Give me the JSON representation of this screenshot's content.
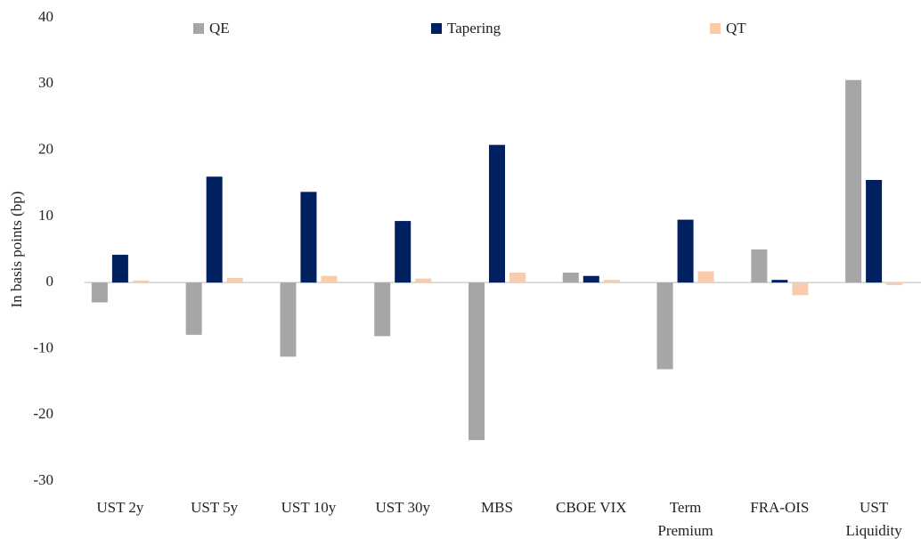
{
  "chart_data": {
    "type": "bar",
    "y_label": "In basis points (bp)",
    "categories": [
      "UST 2y",
      "UST 5y",
      "UST 10y",
      "UST 30y",
      "MBS",
      "CBOE VIX",
      "Term\nPremium",
      "FRA-OIS",
      "UST\nLiquidity"
    ],
    "series": [
      {
        "name": "QE",
        "color": "#a6a6a6",
        "values": [
          -3.0,
          -7.9,
          -11.2,
          -8.1,
          -23.8,
          1.5,
          -13.1,
          5.0,
          30.6
        ]
      },
      {
        "name": "Tapering",
        "color": "#002060",
        "values": [
          4.2,
          16.0,
          13.7,
          9.3,
          20.8,
          1.0,
          9.5,
          0.4,
          15.5
        ]
      },
      {
        "name": "QT",
        "color": "#f8cbad",
        "values": [
          0.3,
          0.7,
          1.0,
          0.6,
          1.5,
          0.4,
          1.7,
          -1.9,
          -0.4
        ]
      }
    ],
    "ylim": [
      -30,
      40
    ],
    "yticks": [
      -30,
      -20,
      -10,
      0,
      10,
      20,
      30,
      40
    ],
    "grid": false,
    "legend": "top"
  }
}
